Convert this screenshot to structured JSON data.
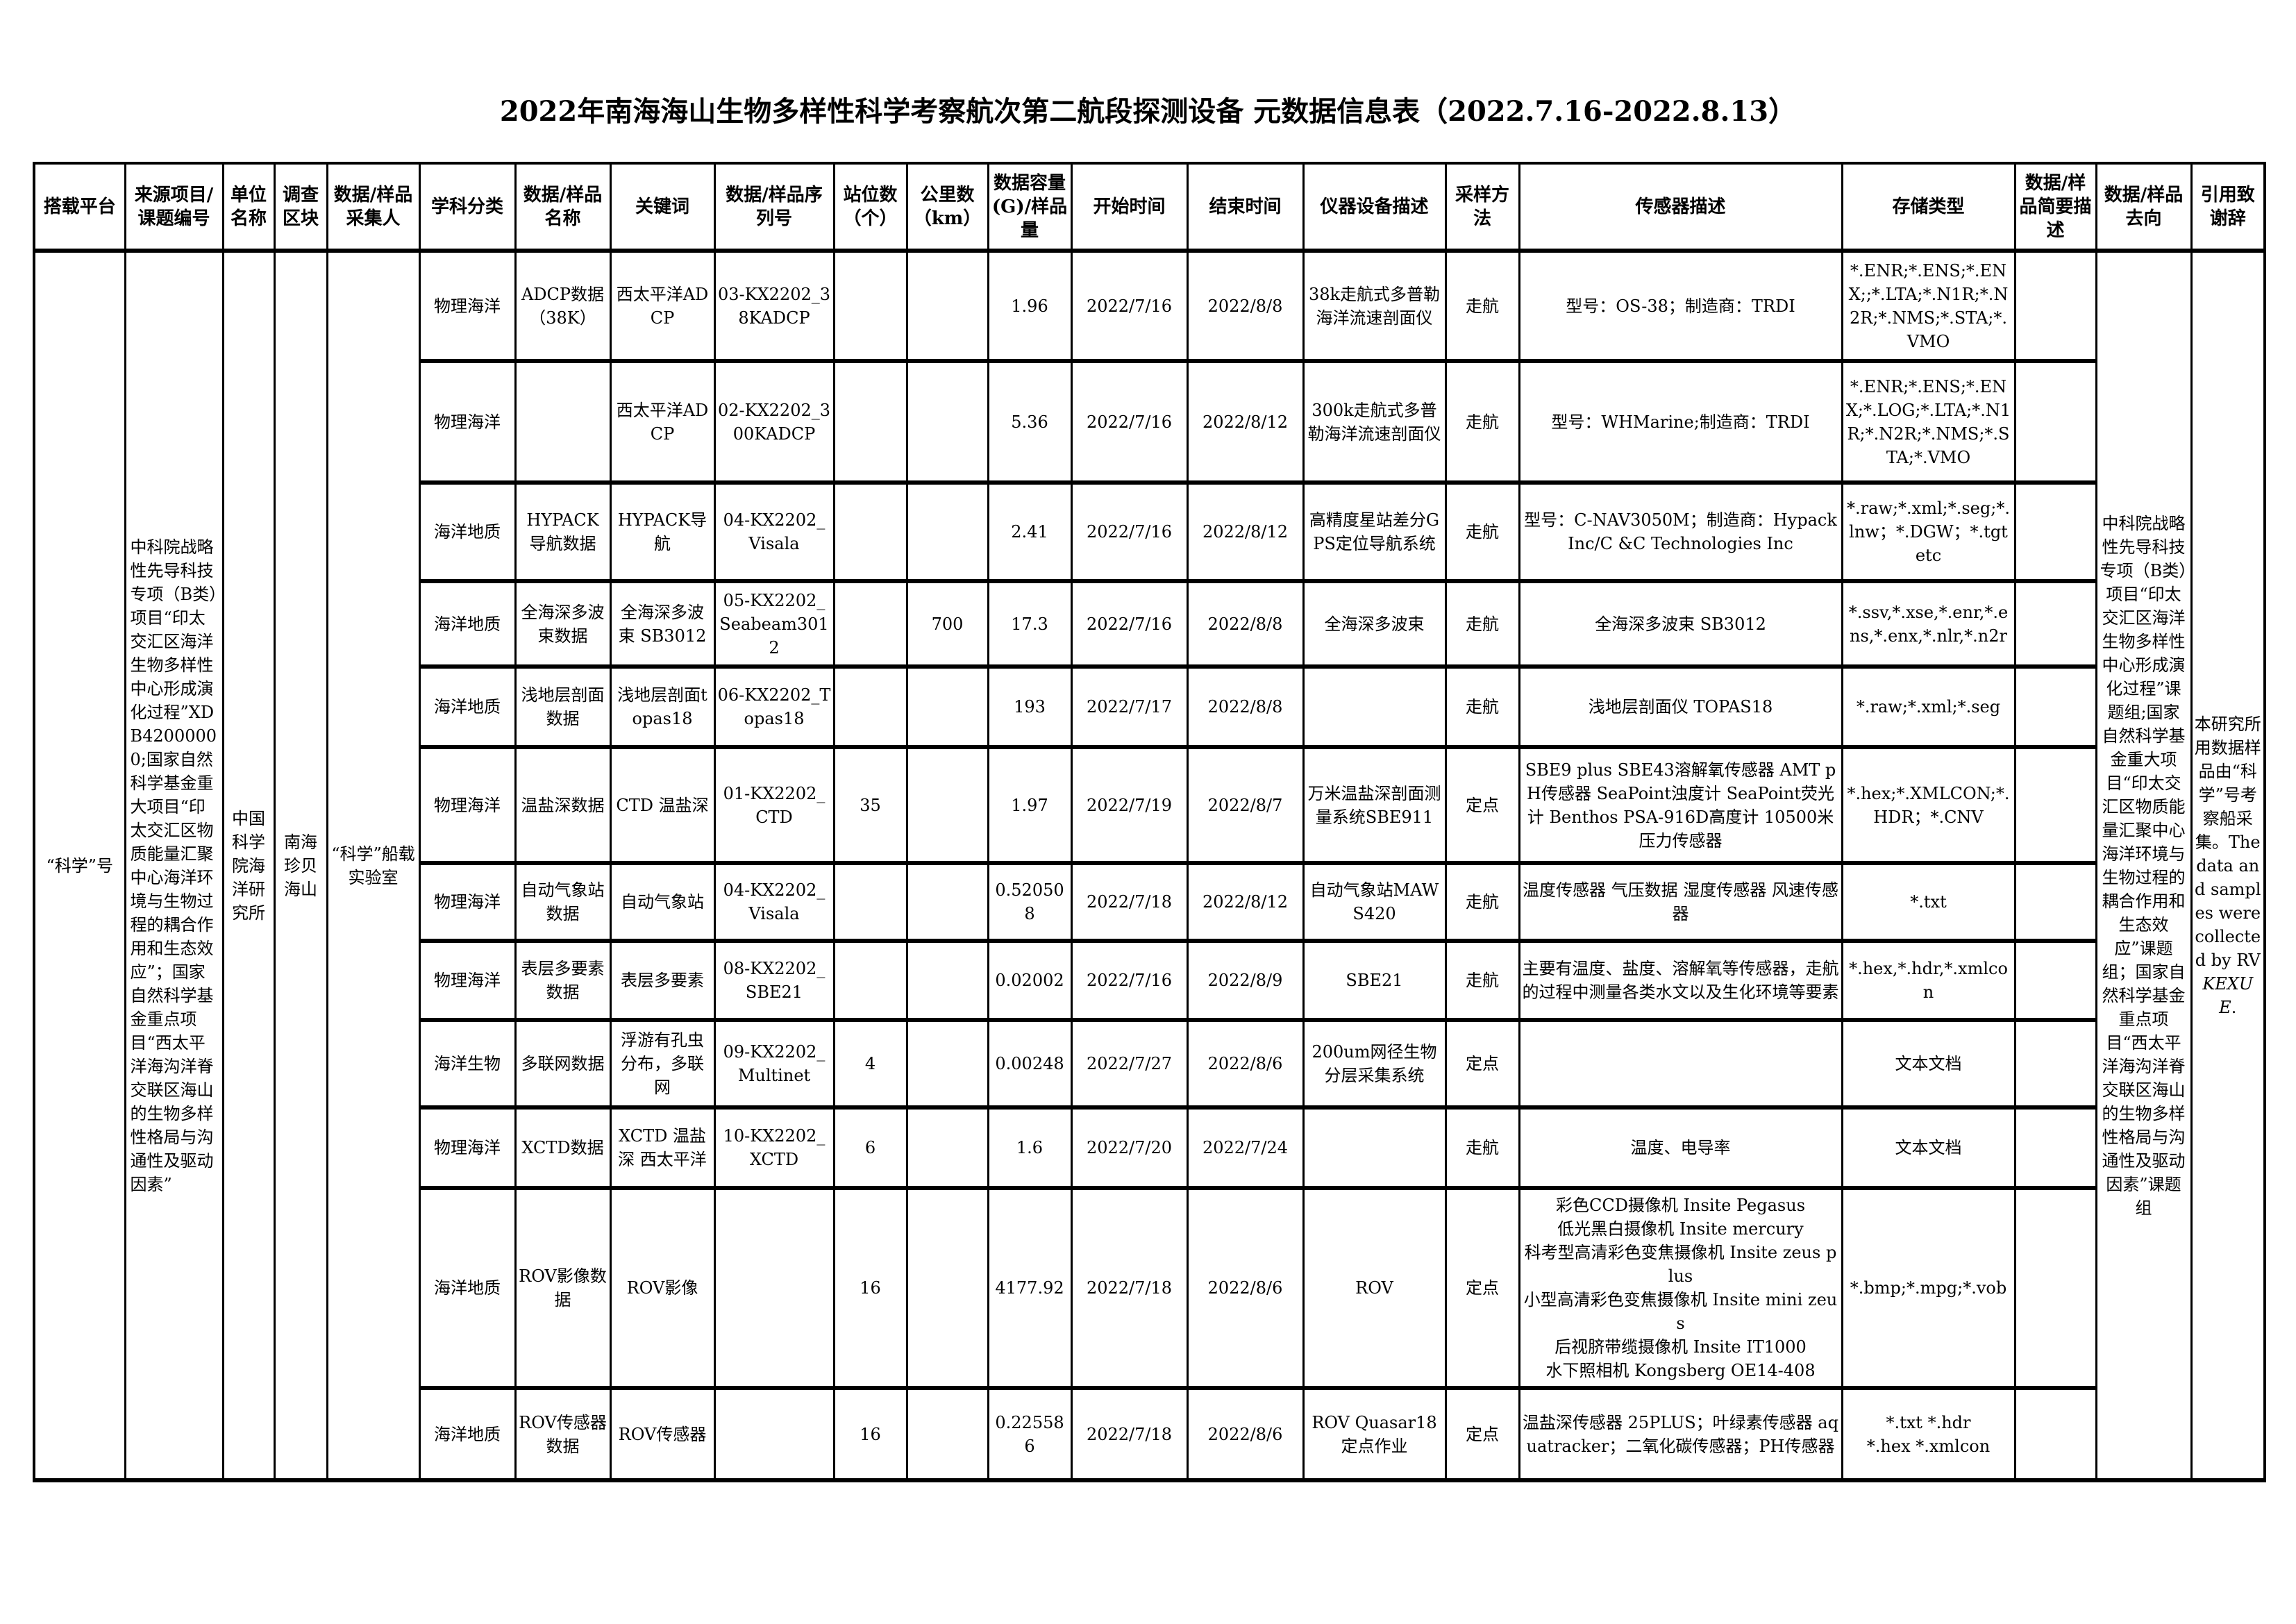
{
  "title": "2022年南海海山生物多样性科学考察航次第二航段探测设备 元数据信息表（2022.7.16-2022.8.13）",
  "headers": [
    "搭载平台",
    "来源项目/课题编号",
    "单位名称",
    "调查区块",
    "数据/样品采集人",
    "学科分类",
    "数据/样品名称",
    "关键词",
    "数据/样品序列号",
    "站位数（个）",
    "公里数（km）",
    "数据容量(G)/样品量",
    "开始时间",
    "结束时间",
    "仪器设备描述",
    "采样方法",
    "传感器描述",
    "存储类型",
    "数据/样品简要描述",
    "数据/样品去向",
    "引用致谢辞"
  ],
  "merged": {
    "platform": "“科学”号",
    "project": "中科院战略性先导科技专项（B类）项目“印太交汇区海洋生物多样性中心形成演化过程”XDB42000000;国家自然科学基金重大项目“印太交汇区物质能量汇聚中心海洋环境与生物过程的耦合作用和生态效应”；国家自然科学基金重点项目“西太平洋海沟洋脊交联区海山的生物多样性格局与沟通性及驱动因素”",
    "unit": "中国科学院海洋研究所",
    "block": "南海珍贝海山",
    "collector": "“科学”船载实验室",
    "destination": "中科院战略性先导科技专项（B类）项目“印太交汇区海洋生物多样性中心形成演化过程”课题组;国家自然科学基金重大项目“印太交汇区物质能量汇聚中心海洋环境与生物过程的耦合作用和生态效应”课题组；国家自然科学基金重点项目“西太平洋海沟洋脊交联区海山的生物多样性格局与沟通性及驱动因素”课题组",
    "ack_text": "本研究所用数据样品由“科学”号考察船采集。The data and samples were collected by RV ",
    "ack_italic": "KEXUE",
    "ack_end": "."
  },
  "rows": [
    {
      "discipline": "物理海洋",
      "name": "ADCP数据（38K）",
      "keyword": "西太平洋ADCP",
      "serial": "03-KX2202_38KADCP",
      "stations": "",
      "km": "",
      "volume": "1.96",
      "start": "2022/7/16",
      "end": "2022/8/8",
      "instrument": "38k走航式多普勒海洋流速剖面仪",
      "method": "走航",
      "sensor": "型号：OS-38；制造商：TRDI",
      "storage": "*.ENR;*.ENS;*.ENX;;*.LTA;*.N1R;*.N2R;*.NMS;*.STA;*.VMO",
      "summary": ""
    },
    {
      "discipline": "物理海洋",
      "name": "",
      "keyword": "西太平洋ADCP",
      "serial": "02-KX2202_300KADCP",
      "stations": "",
      "km": "",
      "volume": "5.36",
      "start": "2022/7/16",
      "end": "2022/8/12",
      "instrument": "300k走航式多普勒海洋流速剖面仪",
      "method": "走航",
      "sensor": "型号：WHMarine;制造商：TRDI",
      "storage": "*.ENR;*.ENS;*.ENX;*.LOG;*.LTA;*.N1R;*.N2R;*.NMS;*.STA;*.VMO",
      "summary": ""
    },
    {
      "discipline": "海洋地质",
      "name": "HYPACK导航数据",
      "keyword": "HYPACK导航",
      "serial": "04-KX2202_Visala",
      "stations": "",
      "km": "",
      "volume": "2.41",
      "start": "2022/7/16",
      "end": "2022/8/12",
      "instrument": "高精度星站差分GPS定位导航系统",
      "method": "走航",
      "sensor": "型号：C-NAV3050M；制造商：Hypack Inc/C &C Technologies Inc",
      "storage": "*.raw;*.xml;*.seg;*.lnw；*.DGW；*.tgt etc",
      "summary": ""
    },
    {
      "discipline": "海洋地质",
      "name": "全海深多波束数据",
      "keyword": "全海深多波束 SB3012",
      "serial": "05-KX2202_Seabeam3012",
      "stations": "",
      "km": "700",
      "volume": "17.3",
      "start": "2022/7/16",
      "end": "2022/8/8",
      "instrument": "全海深多波束",
      "method": "走航",
      "sensor": "全海深多波束 SB3012",
      "storage": "*.ssv,*.xse,*.enr,*.ens,*.enx,*.nlr,*.n2r",
      "summary": ""
    },
    {
      "discipline": "海洋地质",
      "name": "浅地层剖面数据",
      "keyword": "浅地层剖面topas18",
      "serial": "06-KX2202_Topas18",
      "stations": "",
      "km": "",
      "volume": "193",
      "start": "2022/7/17",
      "end": "2022/8/8",
      "instrument": "",
      "method": "走航",
      "sensor": "浅地层剖面仪 TOPAS18",
      "storage": "*.raw;*.xml;*.seg",
      "summary": ""
    },
    {
      "discipline": "物理海洋",
      "name": "温盐深数据",
      "keyword": "CTD 温盐深",
      "serial": "01-KX2202_CTD",
      "stations": "35",
      "km": "",
      "volume": "1.97",
      "start": "2022/7/19",
      "end": "2022/8/7",
      "instrument": "万米温盐深剖面测量系统SBE911",
      "method": "定点",
      "sensor": "SBE9 plus SBE43溶解氧传感器 AMT pH传感器 SeaPoint浊度计 SeaPoint荧光计 Benthos PSA-916D高度计 10500米压力传感器",
      "storage": "*.hex;*.XMLCON;*.HDR；*.CNV",
      "summary": ""
    },
    {
      "discipline": "物理海洋",
      "name": "自动气象站数据",
      "keyword": "自动气象站",
      "serial": "04-KX2202_Visala",
      "stations": "",
      "km": "",
      "volume": "0.520508",
      "start": "2022/7/18",
      "end": "2022/8/12",
      "instrument": "自动气象站MAWS420",
      "method": "走航",
      "sensor": "温度传感器 气压数据 湿度传感器 风速传感器",
      "storage": "*.txt",
      "summary": ""
    },
    {
      "discipline": "物理海洋",
      "name": "表层多要素数据",
      "keyword": "表层多要素",
      "serial": "08-KX2202_SBE21",
      "stations": "",
      "km": "",
      "volume": "0.02002",
      "start": "2022/7/16",
      "end": "2022/8/9",
      "instrument": "SBE21",
      "method": "走航",
      "sensor": "主要有温度、盐度、溶解氧等传感器，走航的过程中测量各类水文以及生化环境等要素",
      "storage": "*.hex,*.hdr,*.xmlcon",
      "summary": ""
    },
    {
      "discipline": "海洋生物",
      "name": "多联网数据",
      "keyword": "浮游有孔虫分布，多联网",
      "serial": "09-KX2202_Multinet",
      "stations": "4",
      "km": "",
      "volume": "0.00248",
      "start": "2022/7/27",
      "end": "2022/8/6",
      "instrument": "200um网径生物分层采集系统",
      "method": "定点",
      "sensor": "",
      "storage": "文本文档",
      "summary": ""
    },
    {
      "discipline": "物理海洋",
      "name": "XCTD数据",
      "keyword": "XCTD 温盐深 西太平洋",
      "serial": "10-KX2202_XCTD",
      "stations": "6",
      "km": "",
      "volume": "1.6",
      "start": "2022/7/20",
      "end": "2022/7/24",
      "instrument": "",
      "method": "走航",
      "sensor": "温度、电导率",
      "storage": "文本文档",
      "summary": ""
    },
    {
      "discipline": "海洋地质",
      "name": "ROV影像数据",
      "keyword": "ROV影像",
      "serial": "",
      "stations": "16",
      "km": "",
      "volume": "4177.92",
      "start": "2022/7/18",
      "end": "2022/8/6",
      "instrument": "ROV",
      "method": "定点",
      "sensor": "彩色CCD摄像机 Insite Pegasus\n低光黑白摄像机 Insite mercury\n科考型高清彩色变焦摄像机 Insite zeus plus\n小型高清彩色变焦摄像机 Insite mini zeus\n后视脐带缆摄像机 Insite IT1000\n水下照相机 Kongsberg OE14-408",
      "storage": "*.bmp;*.mpg;*.vob",
      "summary": ""
    },
    {
      "discipline": "海洋地质",
      "name": "ROV传感器数据",
      "keyword": "ROV传感器",
      "serial": "",
      "stations": "16",
      "km": "",
      "volume": "0.225586",
      "start": "2022/7/18",
      "end": "2022/8/6",
      "instrument": "ROV Quasar18定点作业",
      "method": "定点",
      "sensor": "温盐深传感器 25PLUS；叶绿素传感器 aquatracker；二氧化碳传感器；PH传感器",
      "storage": "*.txt *.hdr\n*.hex *.xmlcon",
      "summary": ""
    }
  ]
}
